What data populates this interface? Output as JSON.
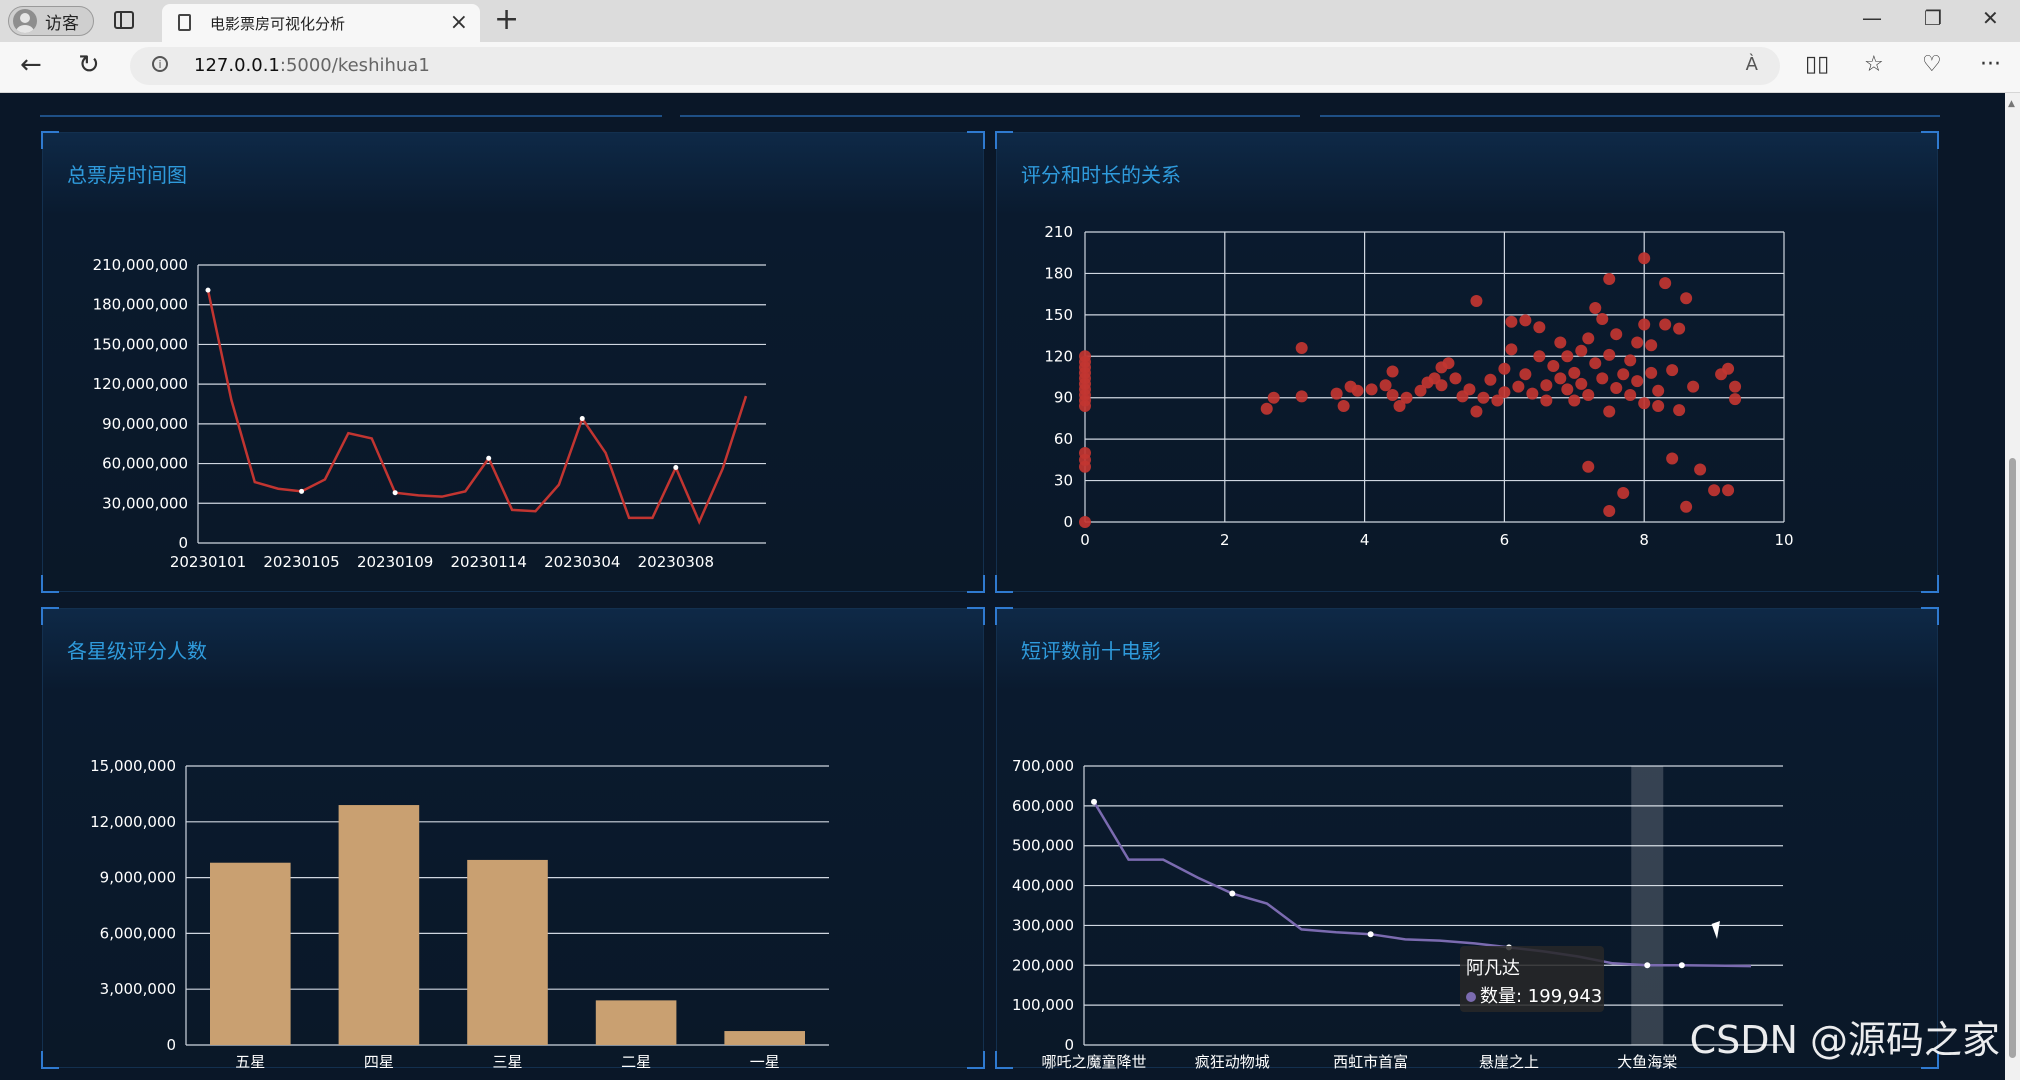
{
  "browser": {
    "profile_label": "访客",
    "tab_title": "电影票房可视化分析",
    "url_host": "127.0.0.1",
    "url_path": ":5000/keshihua1",
    "read_aloud_label": "À",
    "new_tab": "+",
    "close_tab": "×",
    "min_label": "—",
    "restore_label": "❐",
    "close_label": "✕",
    "back_label": "←",
    "reload_label": "↻",
    "info_label": "i",
    "more_label": "···"
  },
  "panels": {
    "box_office": {
      "title": "总票房时间图"
    },
    "score_duration": {
      "title": "评分和时长的关系"
    },
    "star_counts": {
      "title": "各星级评分人数"
    },
    "top_reviews": {
      "title": "短评数前十电影"
    }
  },
  "tooltip": {
    "name": "阿凡达",
    "label": "数量: 199,943"
  },
  "watermark": "CSDN @源码之家",
  "chart_data": [
    {
      "type": "line",
      "title": "总票房时间图",
      "x_tick_labels": [
        "20230101",
        "20230105",
        "20230109",
        "20230114",
        "20230304",
        "20230308"
      ],
      "y_ticks": [
        "0",
        "30,000,000",
        "60,000,000",
        "90,000,000",
        "120,000,000",
        "150,000,000",
        "180,000,000",
        "210,000,000"
      ],
      "ylim": [
        0,
        210000000
      ],
      "values": [
        191000000,
        108000000,
        46000000,
        41000000,
        39000000,
        48000000,
        83000000,
        79000000,
        38000000,
        36000000,
        35000000,
        39000000,
        64000000,
        25000000,
        24000000,
        44000000,
        94000000,
        68000000,
        19000000,
        19000000,
        57000000,
        16000000,
        56000000,
        111000000
      ],
      "color": "#c23531"
    },
    {
      "type": "scatter",
      "title": "评分和时长的关系",
      "x_ticks": [
        "0",
        "2",
        "4",
        "6",
        "8",
        "10"
      ],
      "y_ticks": [
        "0",
        "30",
        "60",
        "90",
        "120",
        "150",
        "180",
        "210"
      ],
      "xlim": [
        0,
        10
      ],
      "ylim": [
        0,
        210
      ],
      "color": "#c23531",
      "points": [
        [
          0,
          0
        ],
        [
          0,
          40
        ],
        [
          0,
          45
        ],
        [
          0,
          50
        ],
        [
          0,
          84
        ],
        [
          0,
          88
        ],
        [
          0,
          92
        ],
        [
          0,
          96
        ],
        [
          0,
          100
        ],
        [
          0,
          104
        ],
        [
          0,
          108
        ],
        [
          0,
          112
        ],
        [
          0,
          116
        ],
        [
          0,
          120
        ],
        [
          2.6,
          82
        ],
        [
          2.7,
          90
        ],
        [
          3.1,
          91
        ],
        [
          3.1,
          126
        ],
        [
          3.6,
          93
        ],
        [
          3.7,
          84
        ],
        [
          3.8,
          98
        ],
        [
          3.9,
          95
        ],
        [
          4.1,
          96
        ],
        [
          4.3,
          99
        ],
        [
          4.4,
          92
        ],
        [
          4.4,
          109
        ],
        [
          4.5,
          84
        ],
        [
          4.6,
          90
        ],
        [
          4.8,
          95
        ],
        [
          4.9,
          101
        ],
        [
          5.0,
          104
        ],
        [
          5.1,
          99
        ],
        [
          5.1,
          112
        ],
        [
          5.2,
          115
        ],
        [
          5.3,
          104
        ],
        [
          5.4,
          91
        ],
        [
          5.5,
          96
        ],
        [
          5.6,
          80
        ],
        [
          5.6,
          160
        ],
        [
          5.7,
          90
        ],
        [
          5.8,
          103
        ],
        [
          5.9,
          88
        ],
        [
          6.0,
          111
        ],
        [
          6.0,
          94
        ],
        [
          6.1,
          125
        ],
        [
          6.1,
          145
        ],
        [
          6.2,
          98
        ],
        [
          6.3,
          107
        ],
        [
          6.3,
          146
        ],
        [
          6.4,
          93
        ],
        [
          6.5,
          120
        ],
        [
          6.5,
          141
        ],
        [
          6.6,
          99
        ],
        [
          6.6,
          88
        ],
        [
          6.7,
          113
        ],
        [
          6.8,
          104
        ],
        [
          6.8,
          130
        ],
        [
          6.9,
          96
        ],
        [
          6.9,
          120
        ],
        [
          7.0,
          108
        ],
        [
          7.0,
          88
        ],
        [
          7.1,
          124
        ],
        [
          7.1,
          100
        ],
        [
          7.2,
          40
        ],
        [
          7.2,
          133
        ],
        [
          7.2,
          92
        ],
        [
          7.3,
          155
        ],
        [
          7.3,
          115
        ],
        [
          7.4,
          104
        ],
        [
          7.4,
          147
        ],
        [
          7.5,
          121
        ],
        [
          7.5,
          8
        ],
        [
          7.5,
          176
        ],
        [
          7.5,
          80
        ],
        [
          7.6,
          97
        ],
        [
          7.6,
          136
        ],
        [
          7.7,
          107
        ],
        [
          7.7,
          21
        ],
        [
          7.8,
          117
        ],
        [
          7.8,
          92
        ],
        [
          7.9,
          102
        ],
        [
          7.9,
          130
        ],
        [
          8.0,
          191
        ],
        [
          8.0,
          143
        ],
        [
          8.0,
          86
        ],
        [
          8.1,
          128
        ],
        [
          8.1,
          108
        ],
        [
          8.2,
          95
        ],
        [
          8.2,
          84
        ],
        [
          8.3,
          143
        ],
        [
          8.3,
          173
        ],
        [
          8.4,
          110
        ],
        [
          8.4,
          46
        ],
        [
          8.5,
          81
        ],
        [
          8.5,
          140
        ],
        [
          8.6,
          162
        ],
        [
          8.6,
          11
        ],
        [
          8.7,
          98
        ],
        [
          8.8,
          38
        ],
        [
          9.0,
          23
        ],
        [
          9.1,
          107
        ],
        [
          9.2,
          111
        ],
        [
          9.2,
          23
        ],
        [
          9.3,
          98
        ],
        [
          9.3,
          89
        ]
      ]
    },
    {
      "type": "bar",
      "title": "各星级评分人数",
      "categories": [
        "五星",
        "四星",
        "三星",
        "二星",
        "一星"
      ],
      "values": [
        9800000,
        12900000,
        9950000,
        2400000,
        750000
      ],
      "y_ticks": [
        "0",
        "3,000,000",
        "6,000,000",
        "9,000,000",
        "12,000,000",
        "15,000,000"
      ],
      "ylim": [
        0,
        15000000
      ],
      "color": "#c9a071"
    },
    {
      "type": "line",
      "title": "短评数前十电影",
      "x_tick_labels": [
        "哪吒之魔童降世",
        "疯狂动物城",
        "西虹市首富",
        "悬崖之上",
        "大鱼海棠"
      ],
      "y_ticks": [
        "0",
        "100,000",
        "200,000",
        "300,000",
        "400,000",
        "500,000",
        "600,000",
        "700,000"
      ],
      "ylim": [
        0,
        700000
      ],
      "values": [
        610000,
        465000,
        465000,
        420000,
        380000,
        355000,
        290000,
        283000,
        278000,
        265000,
        262000,
        255000,
        245000,
        235000,
        222000,
        205000,
        200000,
        199943,
        199000,
        198000
      ],
      "highlight_label": "阿凡达",
      "color": "#7b6bb0"
    }
  ]
}
